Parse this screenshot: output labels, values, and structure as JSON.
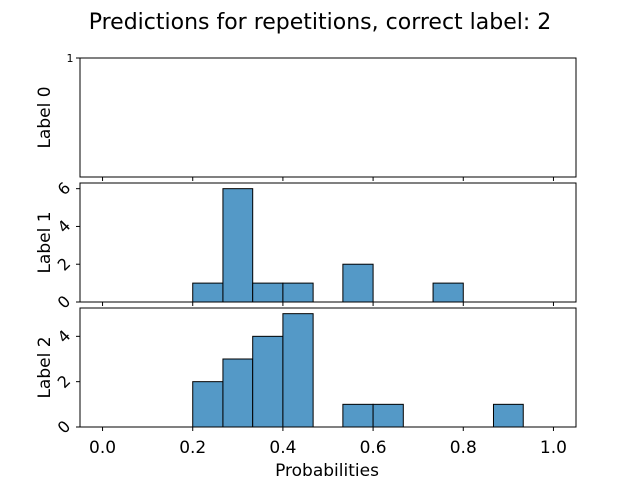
{
  "chart_data": {
    "type": "bar",
    "title": "Predictions for repetitions, correct label: 2",
    "xlabel": "Probabilities",
    "xlim": [
      -0.05,
      1.05
    ],
    "xticks": [
      "0.0",
      "0.2",
      "0.4",
      "0.6",
      "0.8",
      "1.0"
    ],
    "bar_color": "#5499c7",
    "panels": [
      {
        "ylabel": "Label 0",
        "ylim": [
          0,
          1
        ],
        "yticks": [
          "1"
        ],
        "bars": []
      },
      {
        "ylabel": "Label 1",
        "ylim": [
          0,
          6.3
        ],
        "yticks": [
          "0",
          "2",
          "4",
          "6"
        ],
        "bars": [
          {
            "x0": 0.2,
            "x1": 0.267,
            "count": 1
          },
          {
            "x0": 0.267,
            "x1": 0.333,
            "count": 6
          },
          {
            "x0": 0.333,
            "x1": 0.4,
            "count": 1
          },
          {
            "x0": 0.4,
            "x1": 0.467,
            "count": 1
          },
          {
            "x0": 0.533,
            "x1": 0.6,
            "count": 2
          },
          {
            "x0": 0.733,
            "x1": 0.8,
            "count": 1
          }
        ]
      },
      {
        "ylabel": "Label 2",
        "ylim": [
          0,
          5.25
        ],
        "yticks": [
          "0",
          "2",
          "4"
        ],
        "bars": [
          {
            "x0": 0.2,
            "x1": 0.267,
            "count": 2
          },
          {
            "x0": 0.267,
            "x1": 0.333,
            "count": 3
          },
          {
            "x0": 0.333,
            "x1": 0.4,
            "count": 4
          },
          {
            "x0": 0.4,
            "x1": 0.467,
            "count": 5
          },
          {
            "x0": 0.533,
            "x1": 0.6,
            "count": 1
          },
          {
            "x0": 0.6,
            "x1": 0.667,
            "count": 1
          },
          {
            "x0": 0.867,
            "x1": 0.933,
            "count": 1
          }
        ]
      }
    ]
  }
}
